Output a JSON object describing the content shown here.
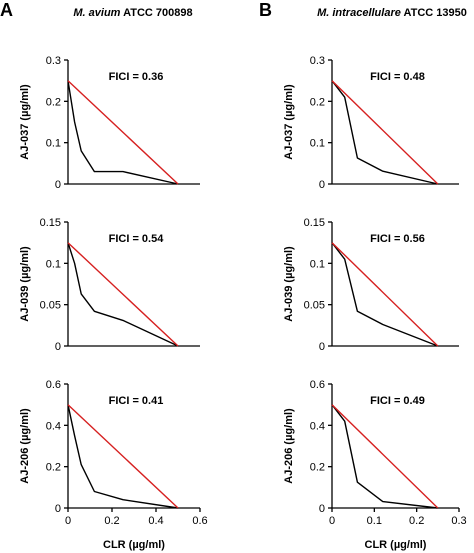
{
  "figure": {
    "panel_a_letter": "A",
    "panel_b_letter": "B",
    "col_a_title_italic": "M. avium",
    "col_a_title_rest": " ATCC 700898",
    "col_b_title_italic": "M. intracellulare",
    "col_b_title_rest": " ATCC 13950",
    "colors": {
      "additivity_line": "#d62020",
      "isobologram": "#000000",
      "axis": "#000000"
    }
  },
  "chart_data": [
    {
      "type": "line",
      "panel": "A",
      "annotation": "FICI = 0.36",
      "xlabel": "",
      "ylabel": "AJ-037 (µg/ml)",
      "xlim": [
        0,
        0.6
      ],
      "ylim": [
        0,
        0.3
      ],
      "xticks": [],
      "yticks": [
        0,
        0.1,
        0.2,
        0.3
      ],
      "series": [
        {
          "role": "isobologram",
          "x": [
            0,
            0.03,
            0.06,
            0.12,
            0.25,
            0.5
          ],
          "y": [
            0.25,
            0.15,
            0.08,
            0.03,
            0.03,
            0
          ]
        },
        {
          "role": "additivity",
          "x": [
            0,
            0.5
          ],
          "y": [
            0.25,
            0
          ]
        }
      ]
    },
    {
      "type": "line",
      "panel": "A",
      "annotation": "FICI = 0.54",
      "xlabel": "",
      "ylabel": "AJ-039 (µg/ml)",
      "xlim": [
        0,
        0.6
      ],
      "ylim": [
        0,
        0.15
      ],
      "xticks": [],
      "yticks": [
        0,
        0.05,
        0.1,
        0.15
      ],
      "series": [
        {
          "role": "isobologram",
          "x": [
            0,
            0.03,
            0.06,
            0.12,
            0.25,
            0.5
          ],
          "y": [
            0.125,
            0.1,
            0.063,
            0.042,
            0.031,
            0
          ]
        },
        {
          "role": "additivity",
          "x": [
            0,
            0.5
          ],
          "y": [
            0.125,
            0
          ]
        }
      ]
    },
    {
      "type": "line",
      "panel": "A",
      "annotation": "FICI = 0.41",
      "xlabel": "CLR (µg/ml)",
      "ylabel": "AJ-206 (µg/ml)",
      "xlim": [
        0,
        0.6
      ],
      "ylim": [
        0,
        0.6
      ],
      "xticks": [
        0,
        0.2,
        0.4,
        0.6
      ],
      "yticks": [
        0,
        0.2,
        0.4,
        0.6
      ],
      "series": [
        {
          "role": "isobologram",
          "x": [
            0,
            0.03,
            0.06,
            0.12,
            0.25,
            0.5
          ],
          "y": [
            0.5,
            0.35,
            0.21,
            0.08,
            0.04,
            0
          ]
        },
        {
          "role": "additivity",
          "x": [
            0,
            0.5
          ],
          "y": [
            0.5,
            0
          ]
        }
      ]
    },
    {
      "type": "line",
      "panel": "B",
      "annotation": "FICI = 0.48",
      "xlabel": "",
      "ylabel": "AJ-037 (µg/ml)",
      "xlim": [
        0,
        0.3
      ],
      "ylim": [
        0,
        0.3
      ],
      "xticks": [],
      "yticks": [
        0,
        0.1,
        0.2,
        0.3
      ],
      "series": [
        {
          "role": "isobologram",
          "x": [
            0,
            0.03,
            0.06,
            0.12,
            0.25
          ],
          "y": [
            0.25,
            0.21,
            0.063,
            0.031,
            0
          ]
        },
        {
          "role": "additivity",
          "x": [
            0,
            0.25
          ],
          "y": [
            0.25,
            0
          ]
        }
      ]
    },
    {
      "type": "line",
      "panel": "B",
      "annotation": "FICI = 0.56",
      "xlabel": "",
      "ylabel": "AJ-039 (µg/ml)",
      "xlim": [
        0,
        0.3
      ],
      "ylim": [
        0,
        0.15
      ],
      "xticks": [],
      "yticks": [
        0,
        0.05,
        0.1,
        0.15
      ],
      "series": [
        {
          "role": "isobologram",
          "x": [
            0,
            0.03,
            0.06,
            0.12,
            0.25
          ],
          "y": [
            0.125,
            0.105,
            0.042,
            0.026,
            0
          ]
        },
        {
          "role": "additivity",
          "x": [
            0,
            0.25
          ],
          "y": [
            0.125,
            0
          ]
        }
      ]
    },
    {
      "type": "line",
      "panel": "B",
      "annotation": "FICI = 0.49",
      "xlabel": "CLR (µg/ml)",
      "ylabel": "AJ-206 (µg/ml)",
      "xlim": [
        0,
        0.3
      ],
      "ylim": [
        0,
        0.6
      ],
      "xticks": [
        0,
        0.1,
        0.2,
        0.3
      ],
      "yticks": [
        0,
        0.2,
        0.4,
        0.6
      ],
      "series": [
        {
          "role": "isobologram",
          "x": [
            0,
            0.03,
            0.06,
            0.12,
            0.25
          ],
          "y": [
            0.5,
            0.42,
            0.125,
            0.031,
            0
          ]
        },
        {
          "role": "additivity",
          "x": [
            0,
            0.25
          ],
          "y": [
            0.5,
            0
          ]
        }
      ]
    }
  ]
}
